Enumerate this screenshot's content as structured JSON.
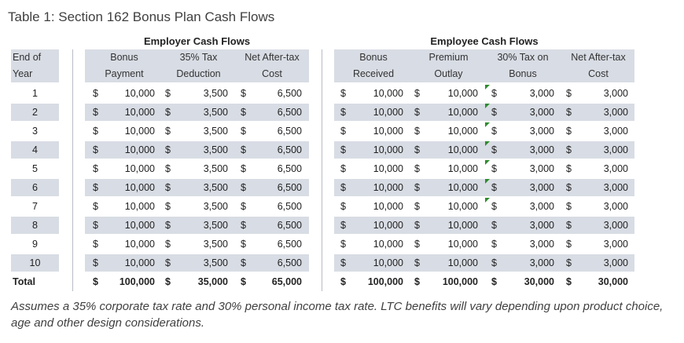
{
  "title": "Table 1: Section 162 Bonus Plan Cash Flows",
  "groups": {
    "employer": "Employer Cash Flows",
    "employee": "Employee Cash Flows"
  },
  "headers": {
    "year": [
      "End of",
      "Year"
    ],
    "bonus": [
      "Bonus",
      "Payment"
    ],
    "deduction": [
      "35% Tax",
      "Deduction"
    ],
    "er_net": [
      "Net After-tax",
      "Cost"
    ],
    "received": [
      "Bonus",
      "Received"
    ],
    "premium": [
      "Premium",
      "Outlay"
    ],
    "tax30": [
      "30% Tax on",
      "Bonus"
    ],
    "ee_net": [
      "Net After-tax",
      "Cost"
    ]
  },
  "currency": "$",
  "rows": [
    {
      "year": "1",
      "bonus": "10,000",
      "deduction": "3,500",
      "er_net": "6,500",
      "received": "10,000",
      "premium": "10,000",
      "tax": "3,000",
      "ee_net": "3,000"
    },
    {
      "year": "2",
      "bonus": "10,000",
      "deduction": "3,500",
      "er_net": "6,500",
      "received": "10,000",
      "premium": "10,000",
      "tax": "3,000",
      "ee_net": "3,000"
    },
    {
      "year": "3",
      "bonus": "10,000",
      "deduction": "3,500",
      "er_net": "6,500",
      "received": "10,000",
      "premium": "10,000",
      "tax": "3,000",
      "ee_net": "3,000"
    },
    {
      "year": "4",
      "bonus": "10,000",
      "deduction": "3,500",
      "er_net": "6,500",
      "received": "10,000",
      "premium": "10,000",
      "tax": "3,000",
      "ee_net": "3,000"
    },
    {
      "year": "5",
      "bonus": "10,000",
      "deduction": "3,500",
      "er_net": "6,500",
      "received": "10,000",
      "premium": "10,000",
      "tax": "3,000",
      "ee_net": "3,000"
    },
    {
      "year": "6",
      "bonus": "10,000",
      "deduction": "3,500",
      "er_net": "6,500",
      "received": "10,000",
      "premium": "10,000",
      "tax": "3,000",
      "ee_net": "3,000"
    },
    {
      "year": "7",
      "bonus": "10,000",
      "deduction": "3,500",
      "er_net": "6,500",
      "received": "10,000",
      "premium": "10,000",
      "tax": "3,000",
      "ee_net": "3,000"
    },
    {
      "year": "8",
      "bonus": "10,000",
      "deduction": "3,500",
      "er_net": "6,500",
      "received": "10,000",
      "premium": "10,000",
      "tax": "3,000",
      "ee_net": "3,000"
    },
    {
      "year": "9",
      "bonus": "10,000",
      "deduction": "3,500",
      "er_net": "6,500",
      "received": "10,000",
      "premium": "10,000",
      "tax": "3,000",
      "ee_net": "3,000"
    },
    {
      "year": "10",
      "bonus": "10,000",
      "deduction": "3,500",
      "er_net": "6,500",
      "received": "10,000",
      "premium": "10,000",
      "tax": "3,000",
      "ee_net": "3,000"
    }
  ],
  "total": {
    "label": "Total",
    "bonus": "100,000",
    "deduction": "35,000",
    "er_net": "65,000",
    "received": "100,000",
    "premium": "100,000",
    "tax": "30,000",
    "ee_net": "30,000"
  },
  "note": "Assumes a 35% corporate tax rate and 30% personal income tax rate. LTC benefits will vary depending upon product choice, age and other design considerations.",
  "colors": {
    "band": "#d8dce4",
    "marker": "#2e8b2e"
  }
}
